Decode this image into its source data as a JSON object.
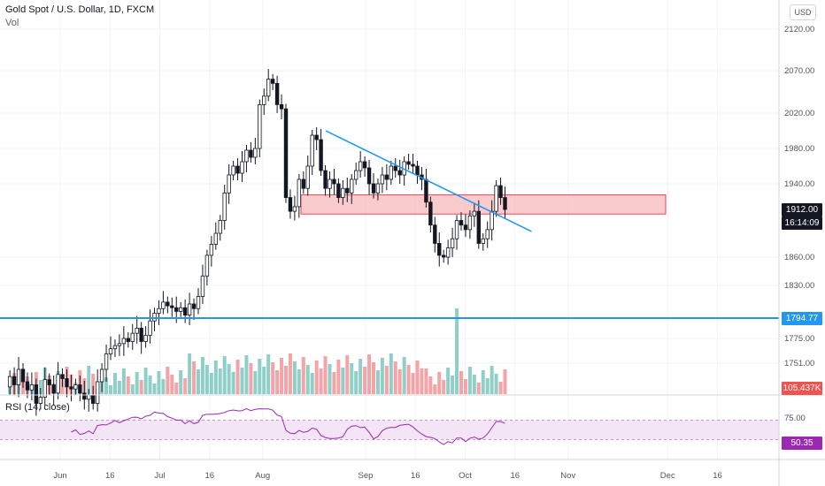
{
  "header": {
    "title": "Gold Spot / U.S. Dollar, 1D, FXCM",
    "sub": "Vol"
  },
  "currency_button": "USD",
  "indicator_label": "RSI (14, close)",
  "tags": {
    "price": "1912.00",
    "countdown": "16:14:09",
    "support": "1794.77",
    "volume": "105.437K",
    "rsi": "50.35"
  },
  "colors": {
    "up": "#26a69a",
    "down": "#131722",
    "vol_up": "#8fcfc8",
    "vol_down": "#f4a3a6",
    "trendline": "#2196f3",
    "support": "#2196f3",
    "zone_fill": "#f7a8ab",
    "zone_stroke": "#e84a5f",
    "rsi_line": "#9c27b0",
    "rsi_band": "#f3e5f5"
  },
  "chart_data": {
    "type": "candlestick",
    "symbol": "XAUUSD",
    "interval": "1D",
    "y_ticks": [
      "2120.00",
      "2070.00",
      "2020.00",
      "1980.00",
      "1940.00",
      "1860.00",
      "1830.00",
      "1775.00",
      "1751.00"
    ],
    "y_tick_values": [
      2120,
      2070,
      2020,
      1980,
      1940,
      1860,
      1830,
      1775,
      1751
    ],
    "x_ticks": [
      {
        "label": "Jun",
        "date": "2020-06-01"
      },
      {
        "label": "16",
        "date": "2020-06-16"
      },
      {
        "label": "Jul",
        "date": "2020-07-01"
      },
      {
        "label": "16",
        "date": "2020-07-16"
      },
      {
        "label": "Aug",
        "date": "2020-08-01"
      },
      {
        "label": "Sep",
        "date": "2020-09-01"
      },
      {
        "label": "16",
        "date": "2020-09-16"
      },
      {
        "label": "Oct",
        "date": "2020-10-01"
      },
      {
        "label": "16",
        "date": "2020-10-16"
      },
      {
        "label": "Nov",
        "date": "2020-11-01"
      },
      {
        "label": "Dec",
        "date": "2020-12-01"
      },
      {
        "label": "16",
        "date": "2020-12-16"
      }
    ],
    "closes": [
      1738,
      1730,
      1745,
      1733,
      1725,
      1730,
      1712,
      1718,
      1735,
      1730,
      1722,
      1740,
      1736,
      1728,
      1726,
      1730,
      1722,
      1716,
      1720,
      1712,
      1733,
      1745,
      1760,
      1765,
      1768,
      1770,
      1775,
      1772,
      1780,
      1785,
      1772,
      1778,
      1792,
      1800,
      1805,
      1812,
      1808,
      1806,
      1802,
      1806,
      1798,
      1810,
      1805,
      1818,
      1840,
      1862,
      1874,
      1886,
      1900,
      1930,
      1950,
      1960,
      1952,
      1965,
      1978,
      1970,
      1980,
      2030,
      2040,
      2060,
      2055,
      2030,
      2025,
      1925,
      1910,
      1915,
      1945,
      1935,
      1960,
      1995,
      1990,
      1955,
      1935,
      1945,
      1940,
      1925,
      1935,
      1930,
      1945,
      1955,
      1965,
      1958,
      1940,
      1930,
      1940,
      1950,
      1945,
      1960,
      1955,
      1950,
      1965,
      1962,
      1960,
      1950,
      1945,
      1920,
      1895,
      1875,
      1862,
      1860,
      1870,
      1880,
      1900,
      1895,
      1890,
      1905,
      1910,
      1875,
      1880,
      1890,
      1910,
      1938,
      1925,
      1912
    ],
    "support_level": 1794.77,
    "resistance_zone": [
      1907,
      1928
    ],
    "trendline": [
      {
        "date": "2020-08-20",
        "value": 2000
      },
      {
        "date": "2020-10-21",
        "value": 1888
      }
    ],
    "volume_last": "105.437K",
    "rsi": {
      "period": 14,
      "ticks": [
        "75.00"
      ],
      "upper": 70,
      "lower": 30,
      "last": 50.35
    }
  }
}
